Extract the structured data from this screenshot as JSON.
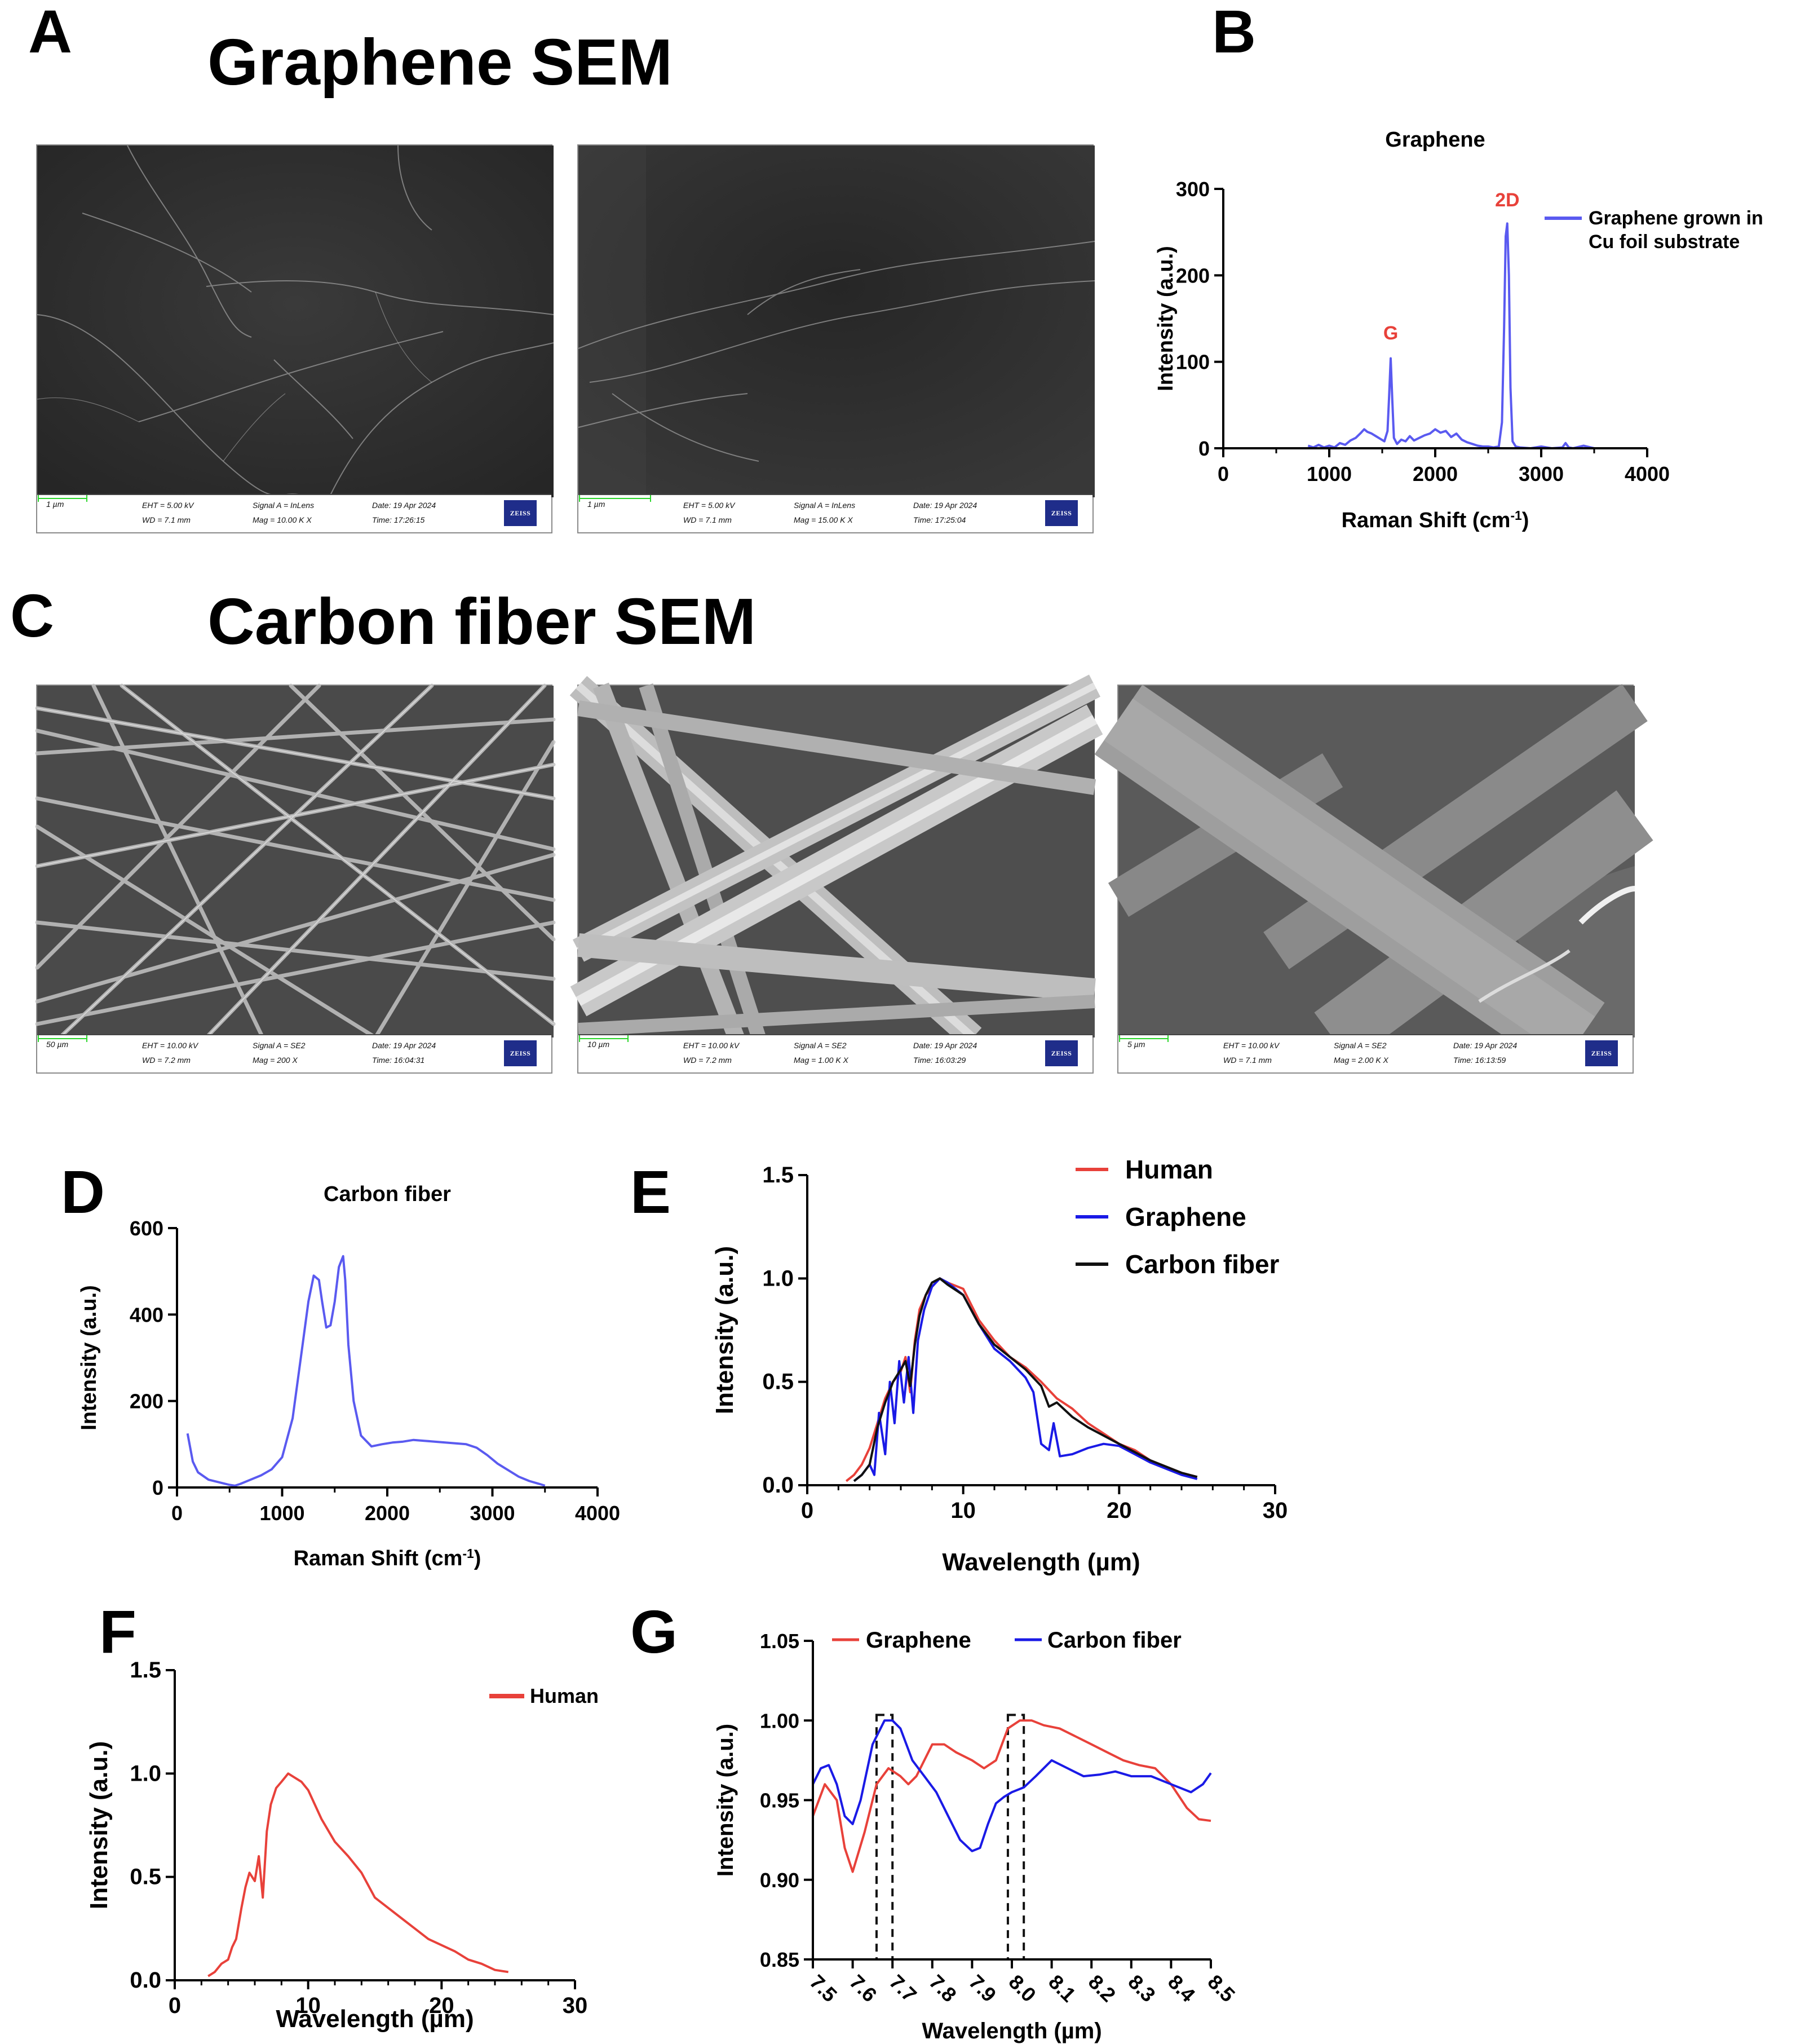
{
  "panels": {
    "a": {
      "letter": "A",
      "title": "Graphene SEM"
    },
    "b": {
      "letter": "B"
    },
    "c": {
      "letter": "C",
      "title": "Carbon fiber SEM"
    },
    "d": {
      "letter": "D"
    },
    "e": {
      "letter": "E"
    },
    "f": {
      "letter": "F"
    },
    "g": {
      "letter": "G"
    }
  },
  "sem_images": [
    {
      "scale": "1 µm",
      "eht": "EHT = 5.00 kV",
      "wd": "WD = 7.1 mm",
      "signal": "Signal A = InLens",
      "mag": "Mag = 10.00 K X",
      "date": "Date: 19 Apr 2024",
      "time": "Time: 17:26:15",
      "logo": "ZEISS"
    },
    {
      "scale": "1 µm",
      "eht": "EHT = 5.00 kV",
      "wd": "WD = 7.1 mm",
      "signal": "Signal A = InLens",
      "mag": "Mag = 15.00 K X",
      "date": "Date: 19 Apr 2024",
      "time": "Time: 17:25:04",
      "logo": "ZEISS"
    },
    {
      "scale": "50 µm",
      "eht": "EHT = 10.00 kV",
      "wd": "WD = 7.2 mm",
      "signal": "Signal A = SE2",
      "mag": "Mag = 200 X",
      "date": "Date: 19 Apr 2024",
      "time": "Time: 16:04:31",
      "logo": "ZEISS"
    },
    {
      "scale": "10 µm",
      "eht": "EHT = 10.00 kV",
      "wd": "WD = 7.2 mm",
      "signal": "Signal A = SE2",
      "mag": "Mag = 1.00 K X",
      "date": "Date: 19 Apr 2024",
      "time": "Time: 16:03:29",
      "logo": "ZEISS"
    },
    {
      "scale": "5 µm",
      "eht": "EHT = 10.00 kV",
      "wd": "WD = 7.1 mm",
      "signal": "Signal A = SE2",
      "mag": "Mag = 2.00 K X",
      "date": "Date: 19 Apr 2024",
      "time": "Time: 16:13:59",
      "logo": "ZEISS"
    }
  ],
  "colors": {
    "red": "#e8413a",
    "blue": "#1a1ae6",
    "raman_blue": "#5a5af0",
    "black": "#111111"
  },
  "chart_data": [
    {
      "id": "B",
      "type": "line",
      "title": "Graphene",
      "xlabel": "Raman Shift (cm",
      "xlabel_sup": "-1",
      "xlabel_end": ")",
      "ylabel": "Intensity (a.u.)",
      "xlim": [
        0,
        4000
      ],
      "ylim": [
        0,
        300
      ],
      "xticks": [
        "0",
        "1000",
        "2000",
        "3000",
        "4000"
      ],
      "yticks": [
        "0",
        "100",
        "200",
        "300"
      ],
      "legend": {
        "line1": "Graphene grown in",
        "line2": "Cu foil substrate",
        "position": "top-right"
      },
      "annotations": [
        {
          "text": "G",
          "x": 1580,
          "y": 118
        },
        {
          "text": "2D",
          "x": 2680,
          "y": 272
        }
      ],
      "series": [
        {
          "name": "Graphene grown in Cu foil substrate",
          "color": "#5a5af0",
          "x": [
            800,
            850,
            900,
            950,
            1000,
            1050,
            1100,
            1150,
            1200,
            1250,
            1300,
            1330,
            1360,
            1400,
            1440,
            1480,
            1520,
            1550,
            1565,
            1580,
            1595,
            1610,
            1640,
            1680,
            1720,
            1760,
            1800,
            1850,
            1900,
            1950,
            2000,
            2050,
            2100,
            2150,
            2200,
            2250,
            2300,
            2350,
            2400,
            2450,
            2500,
            2550,
            2600,
            2630,
            2650,
            2665,
            2680,
            2695,
            2710,
            2730,
            2760,
            2800,
            2900,
            3000,
            3100,
            3200,
            3230,
            3260,
            3300,
            3400,
            3500
          ],
          "y": [
            3,
            1,
            4,
            1,
            3,
            1,
            6,
            4,
            9,
            12,
            18,
            22,
            19,
            17,
            14,
            11,
            8,
            20,
            60,
            104,
            55,
            12,
            5,
            10,
            8,
            14,
            9,
            12,
            15,
            17,
            22,
            18,
            20,
            13,
            17,
            10,
            7,
            5,
            3,
            2,
            2,
            1,
            2,
            30,
            140,
            245,
            260,
            200,
            70,
            8,
            2,
            1,
            0,
            2,
            0,
            1,
            6,
            1,
            0,
            3,
            0
          ]
        }
      ]
    },
    {
      "id": "D",
      "type": "line",
      "title": "Carbon fiber",
      "xlabel": "Raman Shift (cm",
      "xlabel_sup": "-1",
      "xlabel_end": ")",
      "ylabel": "Intensity (a.u.)",
      "xlim": [
        0,
        4000
      ],
      "ylim": [
        0,
        600
      ],
      "xticks": [
        "0",
        "1000",
        "2000",
        "3000",
        "4000"
      ],
      "yticks": [
        "0",
        "200",
        "400",
        "600"
      ],
      "series": [
        {
          "name": "Carbon fiber",
          "color": "#5a5af0",
          "x": [
            100,
            150,
            200,
            300,
            400,
            500,
            550,
            600,
            700,
            800,
            900,
            1000,
            1100,
            1200,
            1250,
            1300,
            1350,
            1380,
            1420,
            1460,
            1500,
            1540,
            1580,
            1600,
            1630,
            1680,
            1750,
            1850,
            1950,
            2050,
            2150,
            2250,
            2350,
            2450,
            2550,
            2650,
            2750,
            2850,
            2950,
            3050,
            3150,
            3250,
            3350,
            3450,
            3500
          ],
          "y": [
            125,
            60,
            35,
            18,
            12,
            6,
            4,
            8,
            18,
            28,
            42,
            70,
            160,
            340,
            430,
            490,
            480,
            430,
            370,
            375,
            430,
            510,
            535,
            480,
            330,
            200,
            120,
            95,
            100,
            104,
            106,
            110,
            108,
            106,
            104,
            102,
            100,
            92,
            75,
            55,
            40,
            25,
            15,
            8,
            4
          ]
        }
      ]
    },
    {
      "id": "E",
      "type": "line",
      "xlabel": "Wavelength (µm)",
      "ylabel": "Intensity (a.u.)",
      "xlim": [
        0,
        30
      ],
      "ylim": [
        0,
        1.5
      ],
      "xticks": [
        "0",
        "10",
        "20",
        "30"
      ],
      "yticks": [
        "0.0",
        "0.5",
        "1.0",
        "1.5"
      ],
      "legend": {
        "position": "top-right"
      },
      "series": [
        {
          "name": "Human",
          "color": "#e8413a",
          "x": [
            2.5,
            3,
            3.5,
            4,
            4.5,
            5,
            5.5,
            6,
            6.3,
            6.6,
            6.9,
            7.2,
            7.6,
            8,
            8.5,
            9,
            10,
            11,
            12,
            13,
            14,
            15,
            16,
            17,
            18,
            19,
            20,
            21,
            22,
            23,
            24,
            25
          ],
          "y": [
            0.02,
            0.05,
            0.1,
            0.18,
            0.3,
            0.42,
            0.5,
            0.55,
            0.62,
            0.45,
            0.7,
            0.85,
            0.92,
            0.96,
            1.0,
            0.98,
            0.95,
            0.8,
            0.7,
            0.62,
            0.57,
            0.5,
            0.42,
            0.37,
            0.3,
            0.25,
            0.2,
            0.17,
            0.12,
            0.09,
            0.06,
            0.04
          ]
        },
        {
          "name": "Graphene",
          "color": "#1a1ae6",
          "x": [
            3,
            3.5,
            4,
            4.3,
            4.6,
            5,
            5.3,
            5.6,
            5.9,
            6.2,
            6.5,
            6.8,
            7.1,
            7.5,
            8,
            8.5,
            9,
            10,
            11,
            12,
            13,
            14,
            14.5,
            15,
            15.5,
            15.8,
            16.2,
            17,
            18,
            19,
            20,
            21,
            22,
            23,
            24,
            25
          ],
          "y": [
            0.02,
            0.05,
            0.1,
            0.05,
            0.35,
            0.15,
            0.5,
            0.3,
            0.6,
            0.4,
            0.62,
            0.35,
            0.7,
            0.85,
            0.96,
            1.0,
            0.98,
            0.92,
            0.78,
            0.66,
            0.6,
            0.52,
            0.45,
            0.2,
            0.17,
            0.3,
            0.14,
            0.15,
            0.18,
            0.2,
            0.19,
            0.15,
            0.11,
            0.08,
            0.05,
            0.03
          ]
        },
        {
          "name": "Carbon fiber",
          "color": "#111111",
          "x": [
            3,
            3.5,
            4,
            4.5,
            5,
            5.5,
            6,
            6.3,
            6.6,
            6.9,
            7.2,
            7.6,
            8,
            8.5,
            9,
            10,
            11,
            12,
            13,
            14,
            15,
            15.5,
            16,
            17,
            18,
            19,
            20,
            21,
            22,
            23,
            24,
            25
          ],
          "y": [
            0.02,
            0.05,
            0.1,
            0.28,
            0.4,
            0.5,
            0.56,
            0.6,
            0.48,
            0.68,
            0.82,
            0.92,
            0.98,
            1.0,
            0.97,
            0.92,
            0.78,
            0.68,
            0.62,
            0.56,
            0.48,
            0.38,
            0.4,
            0.33,
            0.28,
            0.24,
            0.2,
            0.16,
            0.12,
            0.09,
            0.06,
            0.04
          ]
        }
      ]
    },
    {
      "id": "F",
      "type": "line",
      "xlabel": "Wavelength (µm)",
      "ylabel": "Intensity (a.u.)",
      "xlim": [
        0,
        30
      ],
      "ylim": [
        0,
        1.5
      ],
      "xticks": [
        "0",
        "10",
        "20",
        "30"
      ],
      "yticks": [
        "0.0",
        "0.5",
        "1.0",
        "1.5"
      ],
      "legend": {
        "position": "top-right"
      },
      "series": [
        {
          "name": "Human",
          "color": "#e8413a",
          "x": [
            2.5,
            3,
            3.5,
            4,
            4.3,
            4.6,
            5,
            5.3,
            5.6,
            6,
            6.3,
            6.6,
            6.9,
            7.2,
            7.6,
            8,
            8.5,
            9,
            9.5,
            10,
            11,
            12,
            13,
            14,
            15,
            16,
            17,
            18,
            19,
            20,
            21,
            22,
            23,
            24,
            25
          ],
          "y": [
            0.02,
            0.04,
            0.08,
            0.1,
            0.16,
            0.2,
            0.35,
            0.45,
            0.52,
            0.48,
            0.6,
            0.4,
            0.72,
            0.85,
            0.93,
            0.96,
            1.0,
            0.98,
            0.96,
            0.92,
            0.78,
            0.67,
            0.6,
            0.52,
            0.4,
            0.35,
            0.3,
            0.25,
            0.2,
            0.17,
            0.14,
            0.1,
            0.08,
            0.05,
            0.04
          ]
        }
      ]
    },
    {
      "id": "G",
      "type": "line",
      "xlabel": "Wavelength (µm)",
      "ylabel": "Intensity (a.u.)",
      "xlim": [
        7.5,
        8.5
      ],
      "ylim": [
        0.85,
        1.05
      ],
      "xticks": [
        "7.5",
        "7.6",
        "7.7",
        "7.8",
        "7.9",
        "8.0",
        "8.1",
        "8.2",
        "8.3",
        "8.4",
        "8.5"
      ],
      "yticks": [
        "0.85",
        "0.90",
        "0.95",
        "1.00",
        "1.05"
      ],
      "legend": {
        "position": "top"
      },
      "highlight_ranges": [
        [
          7.66,
          7.7
        ],
        [
          7.99,
          8.03
        ]
      ],
      "series": [
        {
          "name": "Graphene",
          "color": "#e8413a",
          "x": [
            7.5,
            7.53,
            7.56,
            7.58,
            7.6,
            7.63,
            7.66,
            7.69,
            7.72,
            7.74,
            7.76,
            7.78,
            7.8,
            7.83,
            7.86,
            7.9,
            7.93,
            7.96,
            7.99,
            8.02,
            8.05,
            8.08,
            8.12,
            8.16,
            8.2,
            8.24,
            8.28,
            8.32,
            8.36,
            8.4,
            8.44,
            8.47,
            8.5
          ],
          "y": [
            0.94,
            0.96,
            0.95,
            0.92,
            0.905,
            0.93,
            0.96,
            0.97,
            0.965,
            0.96,
            0.965,
            0.975,
            0.985,
            0.985,
            0.98,
            0.975,
            0.97,
            0.975,
            0.995,
            1.0,
            1.0,
            0.997,
            0.995,
            0.99,
            0.985,
            0.98,
            0.975,
            0.972,
            0.97,
            0.96,
            0.945,
            0.938,
            0.937
          ]
        },
        {
          "name": "Carbon fiber",
          "color": "#1a1ae6",
          "x": [
            7.5,
            7.52,
            7.54,
            7.56,
            7.58,
            7.6,
            7.62,
            7.65,
            7.68,
            7.7,
            7.72,
            7.75,
            7.78,
            7.81,
            7.84,
            7.87,
            7.9,
            7.92,
            7.94,
            7.96,
            7.98,
            8.0,
            8.03,
            8.06,
            8.1,
            8.14,
            8.18,
            8.22,
            8.26,
            8.3,
            8.35,
            8.4,
            8.45,
            8.48,
            8.5
          ],
          "y": [
            0.96,
            0.97,
            0.972,
            0.96,
            0.94,
            0.935,
            0.95,
            0.985,
            1.0,
            1.0,
            0.995,
            0.975,
            0.965,
            0.955,
            0.94,
            0.925,
            0.918,
            0.92,
            0.935,
            0.948,
            0.952,
            0.955,
            0.958,
            0.965,
            0.975,
            0.97,
            0.965,
            0.966,
            0.968,
            0.965,
            0.965,
            0.96,
            0.955,
            0.96,
            0.967
          ]
        }
      ]
    }
  ]
}
